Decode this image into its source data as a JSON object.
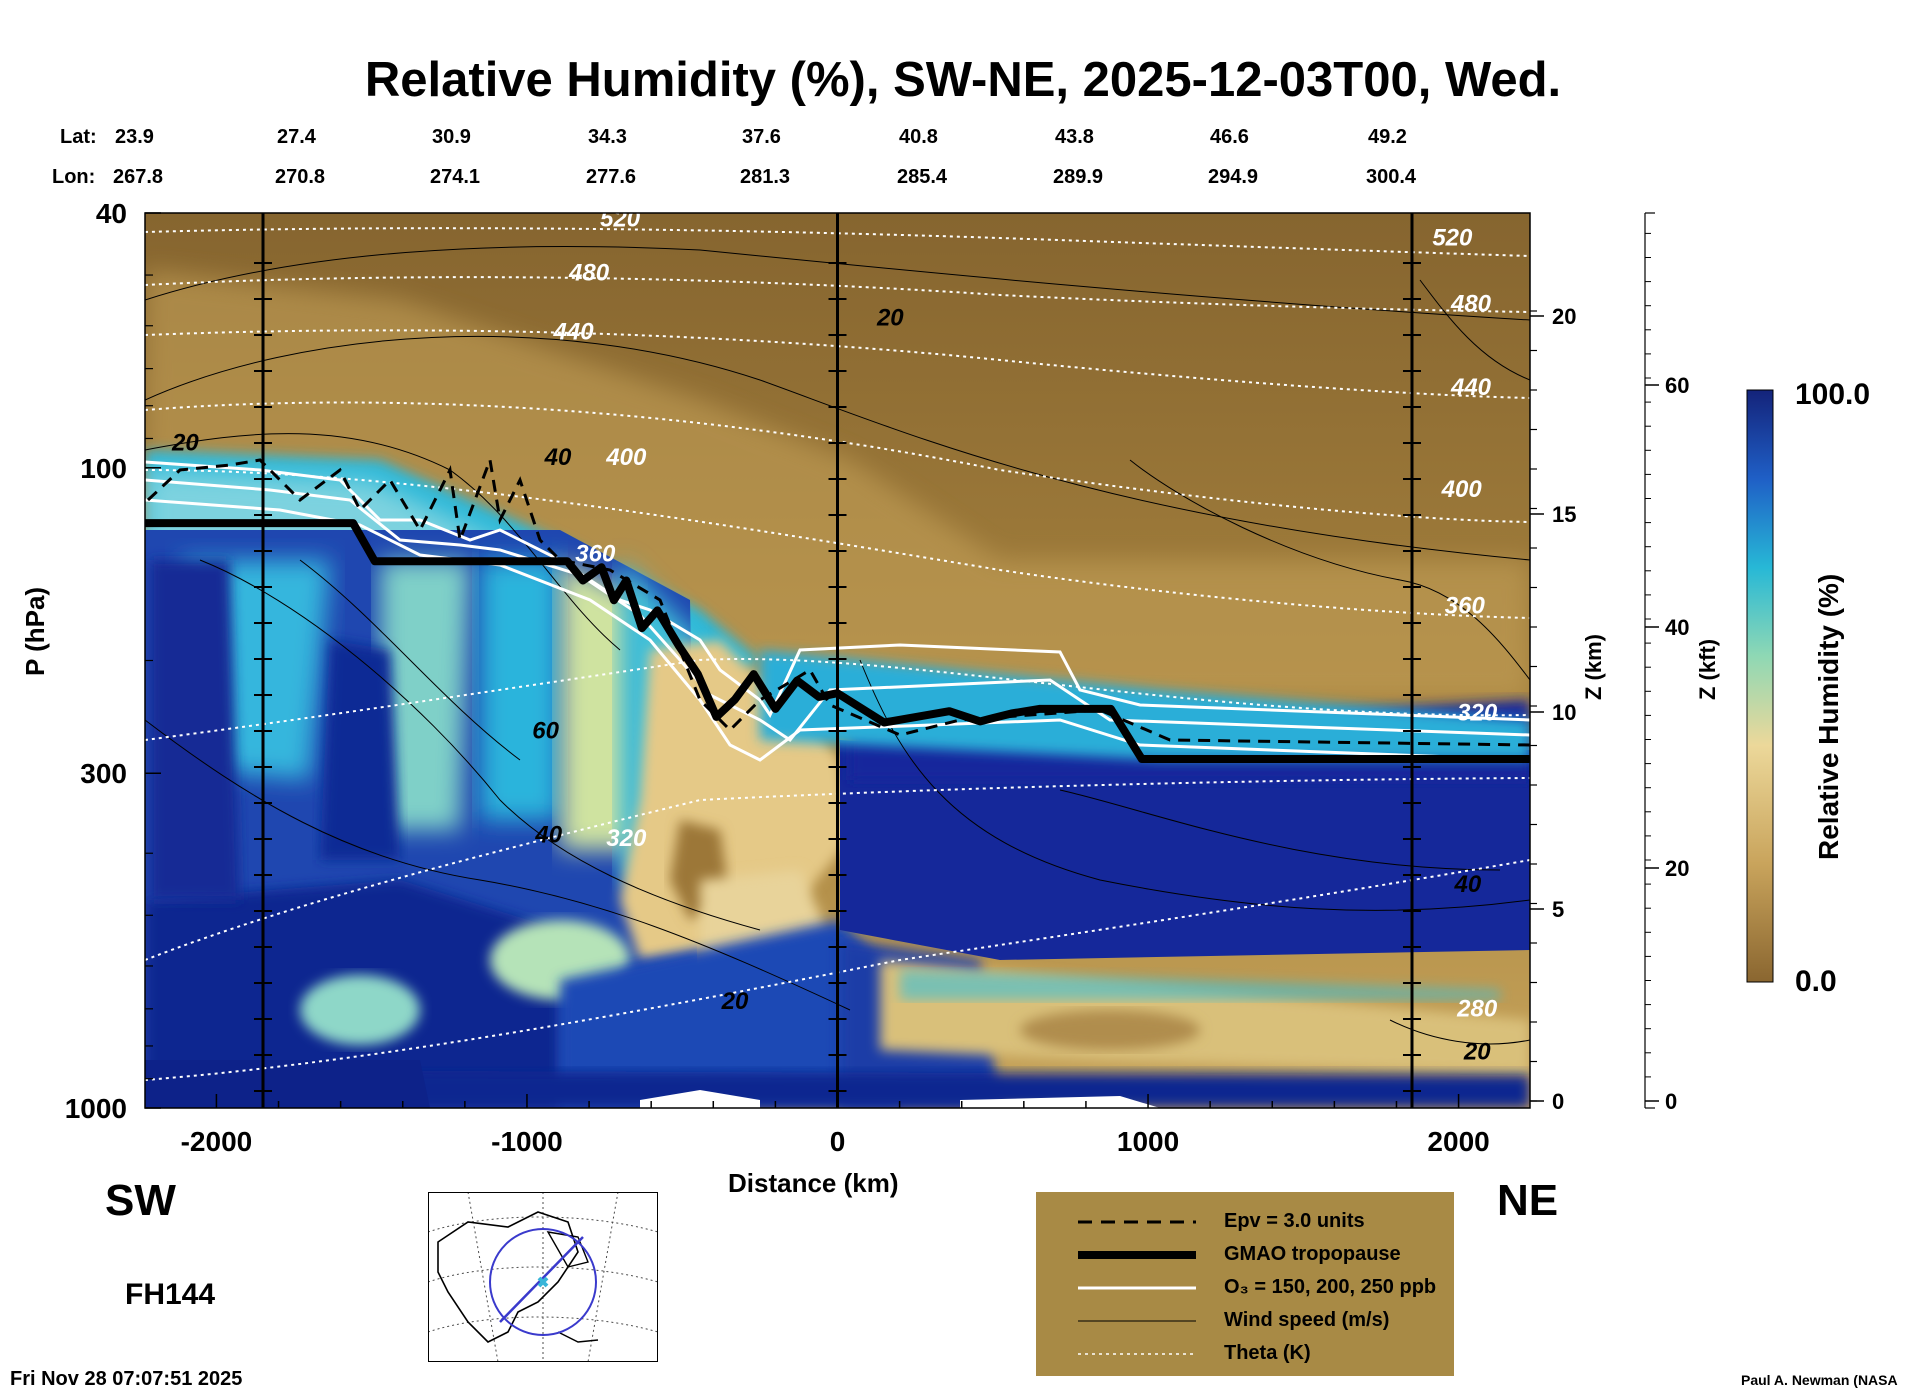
{
  "title": "Relative Humidity (%), SW-NE, 2025-12-03T00, Wed.",
  "header": {
    "lat_label": "Lat:",
    "lon_label": "Lon:",
    "lat": [
      "23.9",
      "27.4",
      "30.9",
      "34.3",
      "37.6",
      "40.8",
      "43.8",
      "46.6",
      "49.2"
    ],
    "lon": [
      "267.8",
      "270.8",
      "274.1",
      "277.6",
      "281.3",
      "285.4",
      "289.9",
      "294.9",
      "300.4"
    ]
  },
  "direction": {
    "left": "SW",
    "right": "NE"
  },
  "forecast_hour": "FH144",
  "timestamp": "Fri Nov 28 07:07:51 2025",
  "credit": "Paul A. Newman (NASA",
  "colorbar": {
    "label": "Relative Humidity (%)",
    "max_label": "100.0",
    "min_label": "0.0"
  },
  "legend": {
    "items": [
      "Epv = 3.0 units",
      "GMAO tropopause",
      "O₃ = 150, 200, 250 ppb",
      "Wind speed (m/s)",
      "Theta (K)"
    ]
  },
  "colors": {
    "legend_bg": "#a88a45",
    "dry": "#8a6630",
    "tan": "#c9a45c",
    "moist_mid": "#27b8d6",
    "wet": "#1f3f9e",
    "saturated": "#0d1f8c"
  },
  "chart_data": {
    "type": "heatmap",
    "variable": "Relative Humidity (%)",
    "xlabel": "Distance (km)",
    "ylabel": "P (hPa)",
    "xlim": [
      -2230,
      2230
    ],
    "ylim": [
      1000,
      40
    ],
    "x_ticks": [
      -2000,
      -1000,
      0,
      1000,
      2000
    ],
    "x_tick_labels": [
      "-2000",
      "-1000",
      "0",
      "1000",
      "2000"
    ],
    "y_ticks": [
      40,
      100,
      300,
      1000
    ],
    "y_tick_labels": [
      "40",
      "100",
      "300",
      "1000"
    ],
    "z_km": {
      "label": "Z (km)",
      "ticks": [
        "0",
        "5",
        "10",
        "15",
        "20"
      ]
    },
    "z_kft": {
      "label": "Z (kft)",
      "ticks": [
        "0",
        "20",
        "40",
        "60"
      ]
    },
    "vertical_lines_km": [
      -1850,
      0,
      1850
    ],
    "theta_labels": [
      {
        "text": "520",
        "x": -700,
        "p": 42
      },
      {
        "text": "480",
        "x": -800,
        "p": 51
      },
      {
        "text": "440",
        "x": -850,
        "p": 63
      },
      {
        "text": "400",
        "x": -680,
        "p": 99
      },
      {
        "text": "360",
        "x": -780,
        "p": 140
      },
      {
        "text": "320",
        "x": -680,
        "p": 390
      },
      {
        "text": "520",
        "x": 1980,
        "p": 45
      },
      {
        "text": "480",
        "x": 2040,
        "p": 57
      },
      {
        "text": "440",
        "x": 2040,
        "p": 77
      },
      {
        "text": "400",
        "x": 2010,
        "p": 111
      },
      {
        "text": "360",
        "x": 2020,
        "p": 169
      },
      {
        "text": "320",
        "x": 2060,
        "p": 248
      },
      {
        "text": "280",
        "x": 2060,
        "p": 720
      }
    ],
    "wind_labels": [
      {
        "text": "20",
        "x": 170,
        "p": 60
      },
      {
        "text": "20",
        "x": -2100,
        "p": 94
      },
      {
        "text": "40",
        "x": -900,
        "p": 99
      },
      {
        "text": "60",
        "x": -940,
        "p": 265
      },
      {
        "text": "40",
        "x": -930,
        "p": 385
      },
      {
        "text": "20",
        "x": -330,
        "p": 700
      },
      {
        "text": "40",
        "x": 2030,
        "p": 460
      },
      {
        "text": "20",
        "x": 2060,
        "p": 840
      }
    ],
    "tropopause": [
      [
        -2230,
        122
      ],
      [
        -1560,
        122
      ],
      [
        -1490,
        140
      ],
      [
        -870,
        140
      ],
      [
        -820,
        150
      ],
      [
        -760,
        143
      ],
      [
        -720,
        161
      ],
      [
        -680,
        150
      ],
      [
        -630,
        178
      ],
      [
        -580,
        167
      ],
      [
        -510,
        190
      ],
      [
        -450,
        210
      ],
      [
        -390,
        245
      ],
      [
        -330,
        230
      ],
      [
        -270,
        210
      ],
      [
        -200,
        238
      ],
      [
        -130,
        215
      ],
      [
        -60,
        228
      ],
      [
        0,
        225
      ],
      [
        150,
        250
      ],
      [
        360,
        240
      ],
      [
        460,
        249
      ],
      [
        500,
        246
      ],
      [
        560,
        242
      ],
      [
        650,
        238
      ],
      [
        880,
        238
      ],
      [
        980,
        285
      ],
      [
        2230,
        285
      ]
    ]
  }
}
